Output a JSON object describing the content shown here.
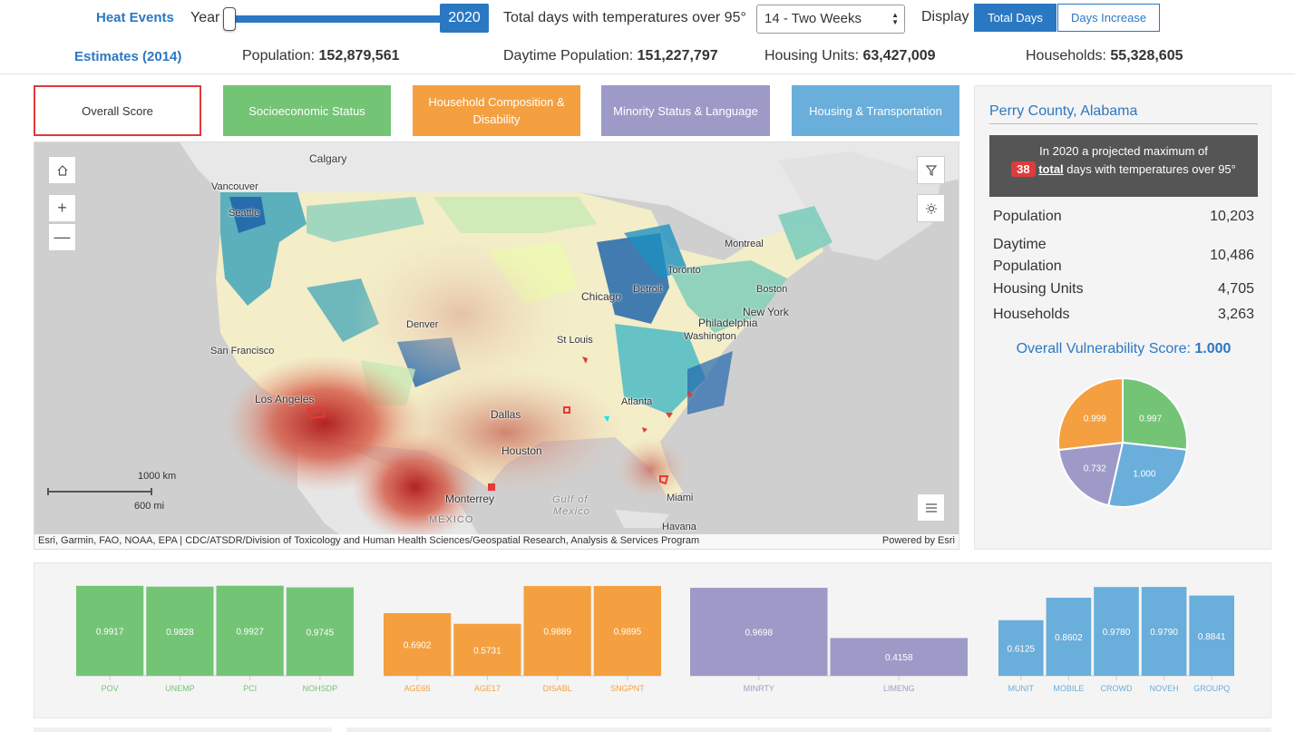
{
  "header": {
    "heat_title": "Heat Events",
    "year_label": "Year",
    "year_value": "2020",
    "year_slider_progress": 0.0,
    "days_label": "Total days with temperatures over 95°",
    "days_select_value": "14 - Two Weeks",
    "display_label": "Display",
    "btn_total_days": "Total Days",
    "btn_days_increase": "Days Increase"
  },
  "estimates": {
    "title": "Estimates (2014)",
    "population_label": "Population:",
    "population_value": "152,879,561",
    "daytime_label": "Daytime Population:",
    "daytime_value": "151,227,797",
    "housing_label": "Housing Units:",
    "housing_value": "63,427,009",
    "households_label": "Households:",
    "households_value": "55,328,605"
  },
  "tabs": [
    {
      "label": "Overall Score",
      "color": "#ffffff"
    },
    {
      "label": "Socioeconomic Status",
      "color": "#74c476"
    },
    {
      "label": "Household Composition & Disability",
      "color": "#f4a040"
    },
    {
      "label": "Minority Status & Language",
      "color": "#9e9ac8"
    },
    {
      "label": "Housing & Transportation",
      "color": "#6aaedb"
    }
  ],
  "map": {
    "labels": [
      "Calgary",
      "Vancouver",
      "Seattle",
      "Montreal",
      "Toronto",
      "Boston",
      "Detroit",
      "Chicago",
      "New York",
      "Philadelphia",
      "Washington",
      "Denver",
      "San Francisco",
      "St Louis",
      "Los Angeles",
      "Atlanta",
      "Dallas",
      "Houston",
      "Miami",
      "Monterrey",
      "MÉXICO",
      "Gulf of",
      "Mexico",
      "Havana"
    ],
    "scale_km": "1000 km",
    "scale_mi": "600 mi",
    "attribution": "Esri, Garmin, FAO, NOAA, EPA | CDC/ATSDR/Division of Toxicology and Human Health Sciences/Geospatial Research, Analysis & Services Program",
    "powered_by": "Powered by Esri",
    "icons": {
      "home": "home-icon",
      "zoom_in": "plus-icon",
      "zoom_out": "minus-icon",
      "filter": "filter-icon",
      "basemap": "sun-icon",
      "legend": "list-icon"
    }
  },
  "panel": {
    "county": "Perry County, Alabama",
    "callout_prefix": "In 2020 a projected maximum of",
    "callout_days": "38",
    "callout_total": "total",
    "callout_suffix": "days with temperatures over 95°",
    "rows": [
      {
        "label": "Population",
        "value": "10,203"
      },
      {
        "label": "Daytime Population",
        "value": "10,486"
      },
      {
        "label": "Housing Units",
        "value": "4,705"
      },
      {
        "label": "Households",
        "value": "3,263"
      }
    ],
    "score_label": "Overall Vulnerability Score:",
    "score_value": "1.000"
  },
  "chart_data": [
    {
      "type": "pie",
      "categories": [
        "Socioeconomic Status",
        "Minority Status & Language",
        "Housing & Transportation",
        "Household Composition & Disability"
      ],
      "values": [
        0.997,
        1.0,
        0.732,
        0.999
      ],
      "labels": [
        "0.997",
        "1.000",
        "0.732",
        "0.999"
      ],
      "colors": [
        "#74c476",
        "#6aaedb",
        "#9e9ac8",
        "#f4a040"
      ]
    },
    {
      "type": "bar",
      "categories": [
        "POV",
        "UNEMP",
        "PCI",
        "NOHSDP"
      ],
      "values": [
        0.9917,
        0.9828,
        0.9927,
        0.9745
      ],
      "labels": [
        "0.9917",
        "0.9828",
        "0.9927",
        "0.9745"
      ],
      "color": "#74c476",
      "ylim": [
        0,
        1
      ]
    },
    {
      "type": "bar",
      "categories": [
        "AGE65",
        "AGE17",
        "DISABL",
        "SNGPNT"
      ],
      "values": [
        0.6902,
        0.5731,
        0.9889,
        0.9895
      ],
      "labels": [
        "0.6902",
        "0.5731",
        "0.9889",
        "0.9895"
      ],
      "color": "#f4a040",
      "ylim": [
        0,
        1
      ]
    },
    {
      "type": "bar",
      "categories": [
        "MINRTY",
        "LIMENG"
      ],
      "values": [
        0.9698,
        0.4158
      ],
      "labels": [
        "0.9698",
        "0.4158"
      ],
      "color": "#9e9ac8",
      "ylim": [
        0,
        1
      ]
    },
    {
      "type": "bar",
      "categories": [
        "MUNIT",
        "MOBILE",
        "CROWD",
        "NOVEH",
        "GROUPQ"
      ],
      "values": [
        0.6125,
        0.8602,
        0.978,
        0.979,
        0.8841
      ],
      "labels": [
        "0.6125",
        "0.8602",
        "0.9780",
        "0.9790",
        "0.8841"
      ],
      "color": "#6aaedb",
      "ylim": [
        0,
        1
      ]
    }
  ]
}
